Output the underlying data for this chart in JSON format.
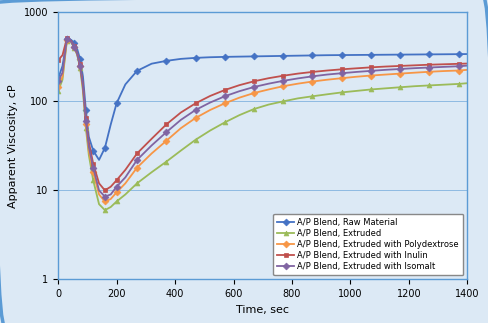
{
  "title": "",
  "xlabel": "Time, sec",
  "ylabel": "Apparent Viscosity, cP",
  "xlim": [
    0,
    1400
  ],
  "ylim": [
    1,
    1000
  ],
  "xticks": [
    0,
    200,
    400,
    600,
    800,
    1000,
    1200,
    1400
  ],
  "yticks": [
    1,
    10,
    100,
    1000
  ],
  "background_color": "#dce9f5",
  "plot_bg_color": "#dce9f5",
  "border_color": "#5b9bd5",
  "grid_color": "#5b9bd5",
  "series": [
    {
      "label": "A/P Blend, Raw Material",
      "color": "#4472c4",
      "marker": "D",
      "markersize": 3.5,
      "linewidth": 1.3,
      "x": [
        0,
        15,
        30,
        45,
        55,
        65,
        75,
        85,
        95,
        105,
        120,
        140,
        160,
        180,
        200,
        230,
        270,
        320,
        370,
        420,
        470,
        520,
        570,
        620,
        670,
        720,
        770,
        820,
        870,
        920,
        970,
        1020,
        1070,
        1120,
        1170,
        1220,
        1270,
        1320,
        1370,
        1400
      ],
      "y": [
        180,
        250,
        500,
        490,
        450,
        390,
        300,
        190,
        80,
        40,
        28,
        22,
        30,
        55,
        95,
        155,
        220,
        265,
        285,
        300,
        308,
        313,
        316,
        318,
        320,
        322,
        324,
        326,
        328,
        330,
        331,
        332,
        333,
        334,
        335,
        336,
        337,
        338,
        339,
        340
      ]
    },
    {
      "label": "A/P Blend, Extruded",
      "color": "#9bbb59",
      "marker": "^",
      "markersize": 3.5,
      "linewidth": 1.3,
      "x": [
        0,
        15,
        30,
        45,
        55,
        65,
        75,
        85,
        95,
        105,
        120,
        140,
        160,
        180,
        200,
        230,
        270,
        320,
        370,
        420,
        470,
        520,
        570,
        620,
        670,
        720,
        770,
        820,
        870,
        920,
        970,
        1020,
        1070,
        1120,
        1170,
        1220,
        1270,
        1320,
        1370,
        1400
      ],
      "y": [
        130,
        175,
        480,
        460,
        400,
        335,
        240,
        130,
        50,
        25,
        13,
        7,
        6,
        6.5,
        7.5,
        9,
        12,
        16,
        21,
        28,
        37,
        47,
        58,
        70,
        82,
        92,
        100,
        108,
        114,
        120,
        126,
        131,
        136,
        140,
        144,
        148,
        151,
        154,
        157,
        160
      ]
    },
    {
      "label": "A/P Blend, Extruded with Polydextrose",
      "color": "#f79646",
      "marker": "D",
      "markersize": 3.5,
      "linewidth": 1.3,
      "x": [
        0,
        15,
        30,
        45,
        55,
        65,
        75,
        85,
        95,
        105,
        120,
        140,
        160,
        180,
        200,
        230,
        270,
        320,
        370,
        420,
        470,
        520,
        570,
        620,
        670,
        720,
        770,
        820,
        870,
        920,
        970,
        1020,
        1070,
        1120,
        1170,
        1220,
        1270,
        1320,
        1370,
        1400
      ],
      "y": [
        145,
        190,
        490,
        465,
        405,
        340,
        248,
        140,
        55,
        28,
        16,
        9,
        7.5,
        8,
        9.5,
        12,
        18,
        26,
        36,
        50,
        65,
        80,
        95,
        110,
        124,
        136,
        148,
        158,
        167,
        175,
        182,
        189,
        195,
        200,
        205,
        210,
        215,
        219,
        222,
        226
      ]
    },
    {
      "label": "A/P Blend, Extruded with Inulin",
      "color": "#c0504d",
      "marker": "s",
      "markersize": 3.5,
      "linewidth": 1.3,
      "x": [
        0,
        15,
        30,
        45,
        55,
        65,
        75,
        85,
        95,
        105,
        120,
        140,
        160,
        180,
        200,
        230,
        270,
        320,
        370,
        420,
        470,
        520,
        570,
        620,
        670,
        720,
        770,
        820,
        870,
        920,
        970,
        1020,
        1070,
        1120,
        1170,
        1220,
        1270,
        1320,
        1370,
        1400
      ],
      "y": [
        290,
        330,
        510,
        475,
        415,
        350,
        260,
        155,
        65,
        35,
        20,
        12,
        10,
        11,
        13,
        17,
        26,
        38,
        55,
        75,
        95,
        115,
        134,
        152,
        168,
        182,
        194,
        205,
        214,
        222,
        229,
        235,
        241,
        246,
        250,
        254,
        258,
        261,
        264,
        266
      ]
    },
    {
      "label": "A/P Blend, Extruded with Isomalt",
      "color": "#8064a2",
      "marker": "D",
      "markersize": 3.5,
      "linewidth": 1.3,
      "x": [
        0,
        15,
        30,
        45,
        55,
        65,
        75,
        85,
        95,
        105,
        120,
        140,
        160,
        180,
        200,
        230,
        270,
        320,
        370,
        420,
        470,
        520,
        570,
        620,
        670,
        720,
        770,
        820,
        870,
        920,
        970,
        1020,
        1070,
        1120,
        1170,
        1220,
        1270,
        1320,
        1370,
        1400
      ],
      "y": [
        170,
        210,
        500,
        468,
        408,
        344,
        252,
        148,
        60,
        31,
        18,
        10,
        8.5,
        9,
        11,
        14,
        22,
        32,
        45,
        62,
        80,
        97,
        114,
        130,
        145,
        158,
        170,
        181,
        191,
        200,
        207,
        214,
        220,
        226,
        231,
        236,
        240,
        244,
        248,
        252
      ]
    }
  ],
  "legend_fontsize": 6.0,
  "axis_fontsize": 8,
  "tick_fontsize": 7,
  "marker_every": 2
}
